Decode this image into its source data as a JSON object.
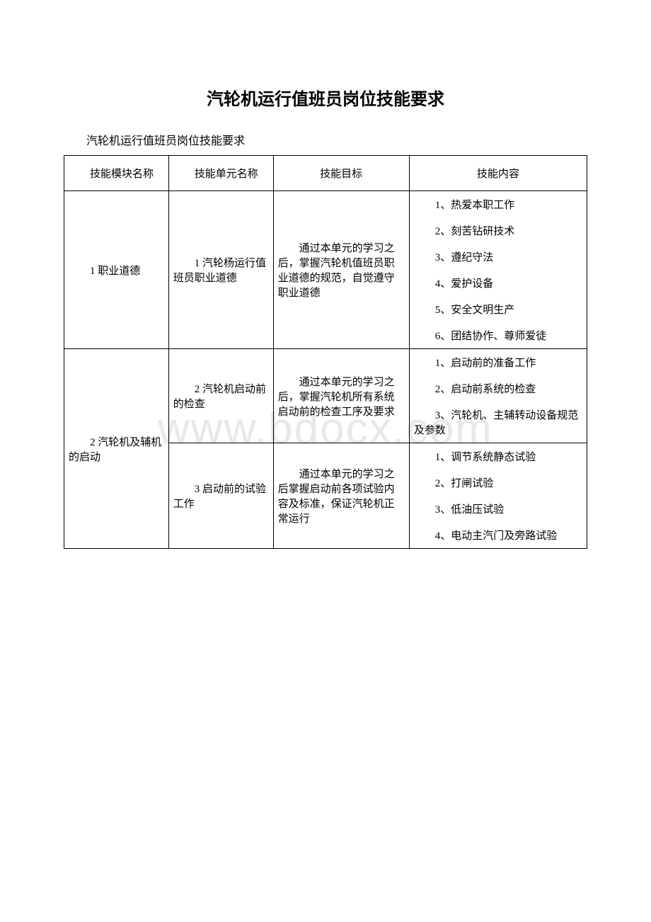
{
  "title": "汽轮机运行值班员岗位技能要求",
  "subtitle": "汽轮机运行值班员岗位技能要求",
  "watermark": "www.bdocx.com",
  "table": {
    "headers": {
      "col1": "技能模块名称",
      "col2": "技能单元名称",
      "col3": "技能目标",
      "col4": "技能内容"
    },
    "rows": [
      {
        "module": "1 职业道德",
        "unit": "1 汽轮杨运行值班员职业道德",
        "goal": "通过本单元的学习之后，掌握汽轮机值班员职业道德的规范，自觉遵守职业道德",
        "items": [
          "1、热爱本职工作",
          "2、刻苦钻研技术",
          "3、遵纪守法",
          "4、爱护设备",
          "5、安全文明生产",
          "6、团结协作、尊师爱徒"
        ]
      },
      {
        "module": "2 汽轮机及辅机的启动",
        "unit": "2 汽轮机启动前的检查",
        "goal": "通过本单元的学习之后，掌握汽轮机所有系统启动前的检查工序及要求",
        "items": [
          "1、启动前的准备工作",
          "2、启动前系统的检查",
          "3、汽轮机、主辅转动设备规范及参数"
        ]
      },
      {
        "module": "",
        "unit": "3 启动前的试验工作",
        "goal": "通过本单元的学习之后掌握启动前各项试验内容及标准，保证汽轮机正常运行",
        "items": [
          "1、调节系统静态试验",
          "2、打闸试验",
          "3、低油压试验",
          "4、电动主汽门及旁路试验"
        ]
      }
    ]
  }
}
